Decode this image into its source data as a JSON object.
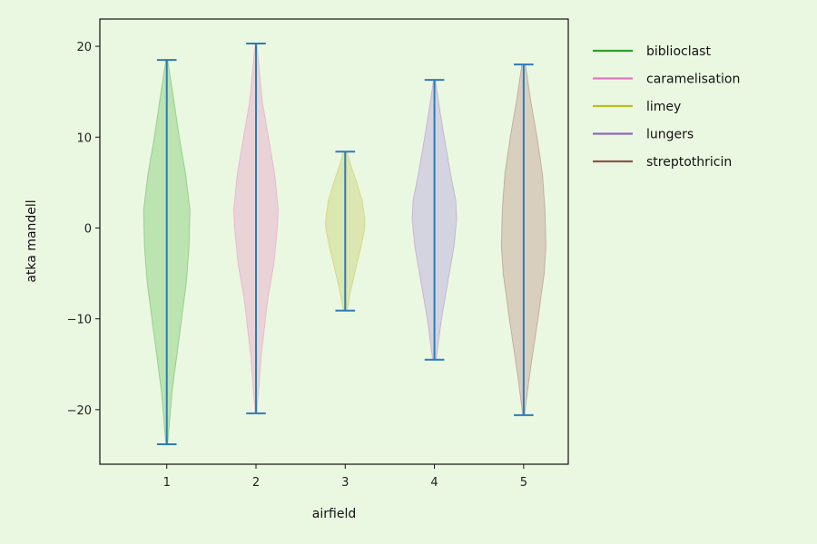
{
  "chart_data": {
    "type": "violin",
    "title": "",
    "xlabel": "airfield",
    "ylabel": "atka mandell",
    "categories": [
      "1",
      "2",
      "3",
      "4",
      "5"
    ],
    "yticks": [
      "20",
      "10",
      "0",
      "−10",
      "−20"
    ],
    "ytick_values": [
      20,
      10,
      0,
      -10,
      -20
    ],
    "ylim": [
      -26,
      23
    ],
    "xlim": [
      0.25,
      5.5
    ],
    "legend_position": "outside-right",
    "extrema_color": "#2e7ab8",
    "series": [
      {
        "name": "biblioclast",
        "x": 1,
        "color": "#2ca02c",
        "fill": "#b3e0a8",
        "min": -23.8,
        "max": 18.5,
        "profile": [
          [
            -23.8,
            0.01
          ],
          [
            -18,
            0.06
          ],
          [
            -12,
            0.14
          ],
          [
            -6,
            0.22
          ],
          [
            -2,
            0.25
          ],
          [
            2,
            0.26
          ],
          [
            6,
            0.21
          ],
          [
            10,
            0.14
          ],
          [
            14,
            0.08
          ],
          [
            18.5,
            0.01
          ]
        ]
      },
      {
        "name": "caramelisation",
        "x": 2,
        "color": "#e377c2",
        "fill": "#e9cdd5",
        "min": -20.4,
        "max": 20.3,
        "profile": [
          [
            -20.4,
            0.01
          ],
          [
            -14,
            0.06
          ],
          [
            -8,
            0.13
          ],
          [
            -4,
            0.2
          ],
          [
            0,
            0.24
          ],
          [
            2,
            0.25
          ],
          [
            6,
            0.21
          ],
          [
            10,
            0.14
          ],
          [
            14,
            0.07
          ],
          [
            20.3,
            0.01
          ]
        ]
      },
      {
        "name": "limey",
        "x": 3,
        "color": "#bcbd22",
        "fill": "#d8e3a8",
        "min": -9.1,
        "max": 8.4,
        "profile": [
          [
            -9.1,
            0.02
          ],
          [
            -7,
            0.06
          ],
          [
            -4,
            0.13
          ],
          [
            -2,
            0.18
          ],
          [
            0,
            0.22
          ],
          [
            1,
            0.22
          ],
          [
            3,
            0.19
          ],
          [
            5,
            0.13
          ],
          [
            7,
            0.06
          ],
          [
            8.4,
            0.02
          ]
        ]
      },
      {
        "name": "lungers",
        "x": 4,
        "color": "#9467bd",
        "fill": "#d0cee0",
        "min": -14.5,
        "max": 16.3,
        "profile": [
          [
            -14.5,
            0.02
          ],
          [
            -10,
            0.08
          ],
          [
            -6,
            0.15
          ],
          [
            -2,
            0.22
          ],
          [
            1,
            0.25
          ],
          [
            3,
            0.24
          ],
          [
            6,
            0.18
          ],
          [
            10,
            0.11
          ],
          [
            13,
            0.06
          ],
          [
            16.3,
            0.01
          ]
        ]
      },
      {
        "name": "streptothricin",
        "x": 5,
        "color": "#8c564b",
        "fill": "#d6c8b8",
        "min": -20.6,
        "max": 18.0,
        "profile": [
          [
            -20.6,
            0.01
          ],
          [
            -16,
            0.07
          ],
          [
            -10,
            0.16
          ],
          [
            -5,
            0.23
          ],
          [
            -2,
            0.25
          ],
          [
            2,
            0.24
          ],
          [
            6,
            0.21
          ],
          [
            10,
            0.15
          ],
          [
            14,
            0.08
          ],
          [
            18,
            0.02
          ]
        ]
      }
    ]
  }
}
